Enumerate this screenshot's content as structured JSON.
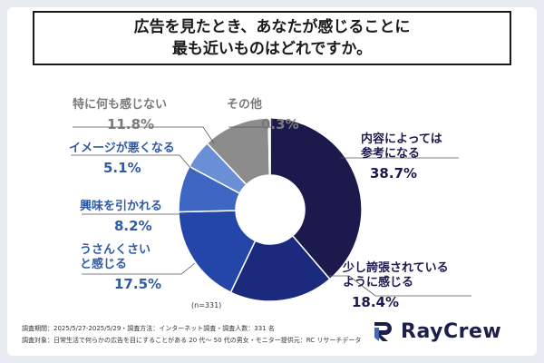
{
  "title_lines": [
    "広告を見たとき、あなたが感じることに",
    "最も近いものはどれですか。"
  ],
  "sample_size": "(n=331)",
  "footnotes": [
    "調査期間：2025/5/27-2025/5/29・調査方法：インターネット調査・調査人数：331 名",
    "調査対象：日常生活で何らかの広告を目にすることがある 20 代〜 50 代の男女・モニター提供元：RC リサーチデータ"
  ],
  "brand": "RayCrew",
  "colors": {
    "series": [
      "#1c1a4d",
      "#1c2a7e",
      "#2346a8",
      "#3d67c2",
      "#6b8fd6",
      "#8c8c8c",
      "#b0b0b0"
    ],
    "label_dark": "#1c1a4d",
    "label_blue": "#2f5aa8",
    "label_gray": "#7a7a7a"
  },
  "chart_data": {
    "type": "pie",
    "donut": true,
    "unit": "%",
    "categories": [
      "内容によっては参考になる",
      "少し誇張されているように感じる",
      "うさんくさいと感じる",
      "興味を引かれる",
      "イメージが悪くなる",
      "特に何も感じない",
      "その他"
    ],
    "label_lines": [
      [
        "内容によっては",
        "参考になる"
      ],
      [
        "少し誇張されている",
        "ように感じる"
      ],
      [
        "うさんくさい",
        "と感じる"
      ],
      [
        "興味を引かれる"
      ],
      [
        "イメージが悪くなる"
      ],
      [
        "特に何も感じない"
      ],
      [
        "その他"
      ]
    ],
    "values": [
      38.7,
      18.4,
      17.5,
      8.2,
      5.1,
      11.8,
      0.3
    ],
    "value_labels": [
      "38.7%",
      "18.4%",
      "17.5%",
      "8.2%",
      "5.1%",
      "11.8%",
      "0.3%"
    ]
  }
}
